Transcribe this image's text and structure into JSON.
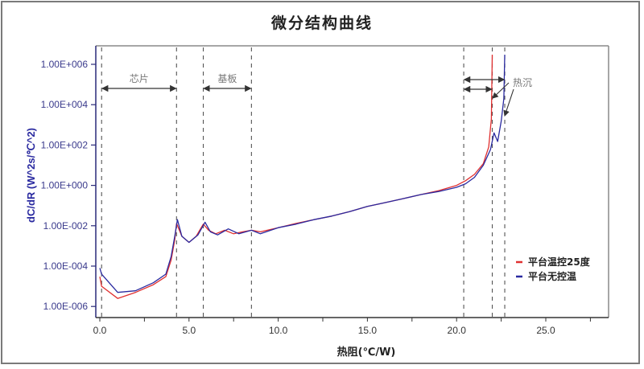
{
  "chart_data": {
    "type": "line",
    "title": "微分结构曲线",
    "xlabel": "热阻(℃/W)",
    "ylabel": "dC/dR (W^2s/℃^2)",
    "x_scale": "linear",
    "y_scale": "log",
    "xlim": [
      -0.2,
      28.5
    ],
    "ylim": [
      1e-07,
      10000000.0
    ],
    "x_ticks": [
      "0.0",
      "5.0",
      "10.0",
      "15.0",
      "20.0",
      "25.0"
    ],
    "x_tick_values": [
      0,
      5,
      10,
      15,
      20,
      25
    ],
    "y_ticks": [
      "1.00E+006",
      "1.00E+004",
      "1.00E+002",
      "1.00E+000",
      "1.00E-002",
      "1.00E-004",
      "1.00E-006"
    ],
    "y_tick_values": [
      1000000.0,
      10000.0,
      100.0,
      1,
      0.01,
      0.0001,
      1e-06
    ],
    "grid": false,
    "legend_position": "lower right",
    "series": [
      {
        "name": "平台温控25度",
        "color": "#e03030",
        "x": [
          0.0,
          0.1,
          1.0,
          2.0,
          3.0,
          3.7,
          4.0,
          4.2,
          4.3,
          4.6,
          5.0,
          5.4,
          5.8,
          6.1,
          6.5,
          7.0,
          7.5,
          8.0,
          8.5,
          9.0,
          10.0,
          11.0,
          12.0,
          13.0,
          14.0,
          15.0,
          16.0,
          17.0,
          18.0,
          19.0,
          20.0,
          20.5,
          21.0,
          21.5,
          21.8,
          21.95,
          22.0
        ],
        "values": [
          3e-05,
          1e-05,
          2.5e-06,
          5e-06,
          1.2e-05,
          3e-05,
          0.0002,
          0.002,
          0.013,
          0.003,
          0.0015,
          0.003,
          0.012,
          0.006,
          0.004,
          0.006,
          0.004,
          0.005,
          0.006,
          0.005,
          0.008,
          0.013,
          0.02,
          0.03,
          0.05,
          0.09,
          0.14,
          0.22,
          0.35,
          0.55,
          1.0,
          1.7,
          3.5,
          12,
          80,
          2000,
          3000000.0
        ]
      },
      {
        "name": "平台无控温",
        "color": "#2a2aa0",
        "x": [
          0.0,
          0.1,
          1.0,
          2.0,
          3.0,
          3.7,
          4.0,
          4.2,
          4.35,
          4.6,
          5.0,
          5.5,
          5.9,
          6.2,
          6.6,
          7.2,
          7.8,
          8.5,
          9.0,
          10.0,
          11.0,
          12.0,
          13.0,
          14.0,
          15.0,
          16.0,
          17.0,
          18.0,
          19.0,
          20.0,
          20.5,
          21.0,
          21.5,
          21.9,
          22.1,
          22.3,
          22.5,
          22.65,
          22.7
        ],
        "values": [
          8e-05,
          4e-05,
          5e-06,
          6e-06,
          1.5e-05,
          4e-05,
          0.0003,
          0.003,
          0.02,
          0.003,
          0.0015,
          0.0035,
          0.015,
          0.005,
          0.0035,
          0.007,
          0.004,
          0.006,
          0.004,
          0.008,
          0.012,
          0.02,
          0.03,
          0.05,
          0.09,
          0.14,
          0.22,
          0.35,
          0.5,
          0.8,
          1.2,
          2.5,
          10,
          60,
          400,
          150,
          1500,
          20000,
          3000000.0
        ]
      }
    ],
    "annotations": [
      {
        "type": "vline",
        "x": 0.1,
        "style": "dashed"
      },
      {
        "type": "vline",
        "x": 4.3,
        "style": "dashed"
      },
      {
        "type": "vline",
        "x": 5.8,
        "style": "dashed"
      },
      {
        "type": "vline",
        "x": 8.5,
        "style": "dashed"
      },
      {
        "type": "vline",
        "x": 20.4,
        "style": "dashed"
      },
      {
        "type": "vline",
        "x": 22.0,
        "style": "dashed"
      },
      {
        "type": "vline",
        "x": 22.7,
        "style": "dashed"
      },
      {
        "type": "span-arrow",
        "label": "芯片",
        "x0": 0.1,
        "x1": 4.3
      },
      {
        "type": "span-arrow",
        "label": "基板",
        "x0": 5.8,
        "x1": 8.5
      },
      {
        "type": "span-arrow",
        "label": "",
        "x0": 20.4,
        "x1": 22.7
      },
      {
        "type": "span-arrow",
        "label": "",
        "x0": 20.4,
        "x1": 22.0
      },
      {
        "type": "text",
        "label": "热沉",
        "x": 23.5,
        "y": 10000.0
      }
    ]
  },
  "title": "微分结构曲线",
  "axes": {
    "xlabel": "热阻(℃/W)",
    "ylabel": "dC/dR (W^2s/℃^2)"
  },
  "regions": {
    "chip": "芯片",
    "substrate": "基板",
    "heatsink": "热沉"
  },
  "legend": [
    {
      "label": "平台温控25度",
      "color": "#e03030"
    },
    {
      "label": "平台无控温",
      "color": "#2a2aa0"
    }
  ]
}
